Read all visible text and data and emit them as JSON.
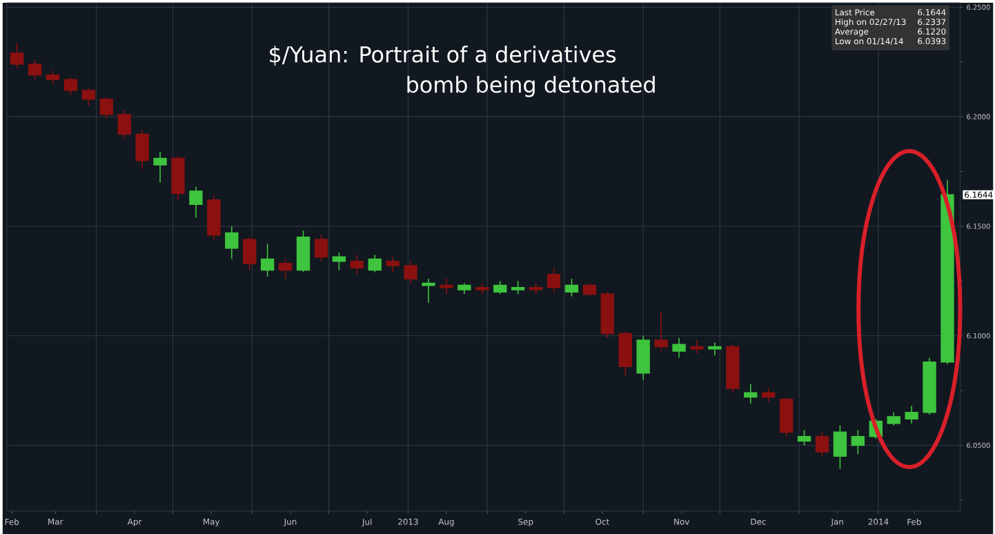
{
  "chart_data": {
    "type": "candlestick",
    "title": "$/Yuan:  Portrait of a derivatives bomb being detonated",
    "x": [
      "2013-03-01",
      "2013-03-08",
      "2013-03-15",
      "2013-03-22",
      "2013-03-29",
      "2013-04-05",
      "2013-04-12",
      "2013-04-19",
      "2013-04-26",
      "2013-05-03",
      "2013-05-10",
      "2013-05-17",
      "2013-05-24",
      "2013-05-31",
      "2013-06-07",
      "2013-06-14",
      "2013-06-21",
      "2013-06-28",
      "2013-07-05",
      "2013-07-12",
      "2013-07-19",
      "2013-07-26",
      "2013-08-02",
      "2013-08-09",
      "2013-08-16",
      "2013-08-23",
      "2013-08-30",
      "2013-09-06",
      "2013-09-13",
      "2013-09-20",
      "2013-09-27",
      "2013-10-04",
      "2013-10-11",
      "2013-10-18",
      "2013-10-25",
      "2013-11-01",
      "2013-11-08",
      "2013-11-15",
      "2013-11-22",
      "2013-11-29",
      "2013-12-06",
      "2013-12-13",
      "2013-12-20",
      "2013-12-27",
      "2014-01-03",
      "2014-01-10",
      "2014-01-17",
      "2014-01-24",
      "2014-01-31",
      "2014-02-07",
      "2014-02-14",
      "2014-02-21",
      "2014-02-28"
    ],
    "ohlc": [
      [
        6.229,
        6.2337,
        6.222,
        6.224
      ],
      [
        6.224,
        6.226,
        6.217,
        6.219
      ],
      [
        6.219,
        6.221,
        6.215,
        6.217
      ],
      [
        6.217,
        6.218,
        6.21,
        6.212
      ],
      [
        6.212,
        6.213,
        6.205,
        6.208
      ],
      [
        6.208,
        6.209,
        6.199,
        6.201
      ],
      [
        6.201,
        6.203,
        6.19,
        6.192
      ],
      [
        6.192,
        6.194,
        6.176,
        6.18
      ],
      [
        6.178,
        6.184,
        6.17,
        6.181
      ],
      [
        6.181,
        6.182,
        6.162,
        6.165
      ],
      [
        6.16,
        6.168,
        6.154,
        6.166
      ],
      [
        6.162,
        6.164,
        6.144,
        6.146
      ],
      [
        6.14,
        6.15,
        6.135,
        6.147
      ],
      [
        6.144,
        6.145,
        6.13,
        6.133
      ],
      [
        6.13,
        6.142,
        6.127,
        6.135
      ],
      [
        6.133,
        6.135,
        6.126,
        6.13
      ],
      [
        6.13,
        6.148,
        6.129,
        6.145
      ],
      [
        6.144,
        6.146,
        6.134,
        6.136
      ],
      [
        6.134,
        6.138,
        6.13,
        6.136
      ],
      [
        6.134,
        6.137,
        6.128,
        6.131
      ],
      [
        6.13,
        6.137,
        6.129,
        6.135
      ],
      [
        6.134,
        6.136,
        6.129,
        6.132
      ],
      [
        6.132,
        6.134,
        6.124,
        6.126
      ],
      [
        6.123,
        6.126,
        6.115,
        6.124
      ],
      [
        6.123,
        6.126,
        6.119,
        6.122
      ],
      [
        6.121,
        6.124,
        6.119,
        6.123
      ],
      [
        6.122,
        6.124,
        6.119,
        6.121
      ],
      [
        6.12,
        6.125,
        6.119,
        6.123
      ],
      [
        6.121,
        6.125,
        6.119,
        6.122
      ],
      [
        6.122,
        6.124,
        6.119,
        6.121
      ],
      [
        6.128,
        6.131,
        6.12,
        6.122
      ],
      [
        6.12,
        6.126,
        6.118,
        6.123
      ],
      [
        6.123,
        6.124,
        6.118,
        6.119
      ],
      [
        6.119,
        6.12,
        6.099,
        6.101
      ],
      [
        6.101,
        6.102,
        6.082,
        6.086
      ],
      [
        6.083,
        6.1,
        6.08,
        6.098
      ],
      [
        6.098,
        6.111,
        6.093,
        6.095
      ],
      [
        6.093,
        6.099,
        6.09,
        6.096
      ],
      [
        6.095,
        6.098,
        6.092,
        6.094
      ],
      [
        6.094,
        6.097,
        6.091,
        6.095
      ],
      [
        6.095,
        6.096,
        6.074,
        6.076
      ],
      [
        6.072,
        6.078,
        6.069,
        6.074
      ],
      [
        6.074,
        6.076,
        6.07,
        6.072
      ],
      [
        6.071,
        6.072,
        6.054,
        6.056
      ],
      [
        6.052,
        6.057,
        6.05,
        6.054
      ],
      [
        6.054,
        6.056,
        6.045,
        6.047
      ],
      [
        6.045,
        6.059,
        6.0393,
        6.056
      ],
      [
        6.05,
        6.057,
        6.046,
        6.054
      ],
      [
        6.054,
        6.062,
        6.053,
        6.061
      ],
      [
        6.06,
        6.065,
        6.059,
        6.063
      ],
      [
        6.062,
        6.068,
        6.06,
        6.065
      ],
      [
        6.065,
        6.09,
        6.064,
        6.088
      ],
      [
        6.088,
        6.171,
        6.087,
        6.1644
      ]
    ],
    "colors": [
      "#8b1010",
      "#8b1010",
      "#8b1010",
      "#8b1010",
      "#8b1010",
      "#8b1010",
      "#8b1010",
      "#8b1010",
      "#3ec43e",
      "#8b1010",
      "#3ec43e",
      "#8b1010",
      "#3ec43e",
      "#8b1010",
      "#3ec43e",
      "#8b1010",
      "#3ec43e",
      "#8b1010",
      "#3ec43e",
      "#8b1010",
      "#3ec43e",
      "#8b1010",
      "#8b1010",
      "#3ec43e",
      "#8b1010",
      "#3ec43e",
      "#8b1010",
      "#3ec43e",
      "#3ec43e",
      "#8b1010",
      "#8b1010",
      "#3ec43e",
      "#8b1010",
      "#8b1010",
      "#8b1010",
      "#3ec43e",
      "#8b1010",
      "#3ec43e",
      "#8b1010",
      "#3ec43e",
      "#8b1010",
      "#3ec43e",
      "#8b1010",
      "#8b1010",
      "#3ec43e",
      "#8b1010",
      "#3ec43e",
      "#3ec43e",
      "#3ec43e",
      "#3ec43e",
      "#3ec43e",
      "#3ec43e",
      "#3ec43e"
    ],
    "xlim": [
      "2013-02-25",
      "2014-03-05"
    ],
    "xticks": [
      {
        "value": "2013-02-27",
        "label": "Feb"
      },
      {
        "value": "2013-03-16",
        "label": "Mar"
      },
      {
        "value": "2013-04-16",
        "label": "Apr"
      },
      {
        "value": "2013-05-16",
        "label": "May"
      },
      {
        "value": "2013-06-16",
        "label": "Jun"
      },
      {
        "value": "2013-07-16",
        "label": "Jul"
      },
      {
        "value": "2013-08-16",
        "label": "Aug"
      },
      {
        "value": "2013-09-16",
        "label": "Sep"
      },
      {
        "value": "2013-10-16",
        "label": "Oct"
      },
      {
        "value": "2013-11-16",
        "label": "Nov"
      },
      {
        "value": "2013-12-16",
        "label": "Dec"
      },
      {
        "value": "2014-01-16",
        "label": "Jan"
      },
      {
        "value": "2014-02-15",
        "label": "Feb"
      },
      {
        "value": "2013-04-01",
        "label": null
      },
      {
        "value": "2013-05-01",
        "label": null
      },
      {
        "value": "2013-06-01",
        "label": null
      },
      {
        "value": "2013-07-01",
        "label": null
      },
      {
        "value": "2013-08-01",
        "label": "2013"
      },
      {
        "value": "2013-09-01",
        "label": null
      },
      {
        "value": "2013-10-01",
        "label": null
      },
      {
        "value": "2013-11-01",
        "label": null
      },
      {
        "value": "2013-12-01",
        "label": null
      },
      {
        "value": "2014-01-01",
        "label": null
      },
      {
        "value": "2014-02-01",
        "label": "2014"
      }
    ],
    "ylim": [
      6.02,
      6.252
    ],
    "yticks": [
      {
        "value": 6.05,
        "label": "6.0500"
      },
      {
        "value": 6.1,
        "label": "6.1000"
      },
      {
        "value": 6.15,
        "label": "6.1500"
      },
      {
        "value": 6.2,
        "label": "6.2000"
      },
      {
        "value": 6.25,
        "label": "6.2500"
      },
      {
        "value": 6.025,
        "label": null
      },
      {
        "value": 6.075,
        "label": null
      },
      {
        "value": 6.125,
        "label": null
      },
      {
        "value": 6.175,
        "label": null
      },
      {
        "value": 6.225,
        "label": null
      }
    ],
    "grid": true,
    "annotations": [
      "Last Price",
      "6.1644",
      "High on 02/27/13",
      "6.2337",
      "Average",
      "6.1220",
      "Low on 01/14/14",
      "6.0393",
      {
        "text": "6.1644",
        "x": "2014-02-28",
        "y": 6.1644
      }
    ]
  }
}
